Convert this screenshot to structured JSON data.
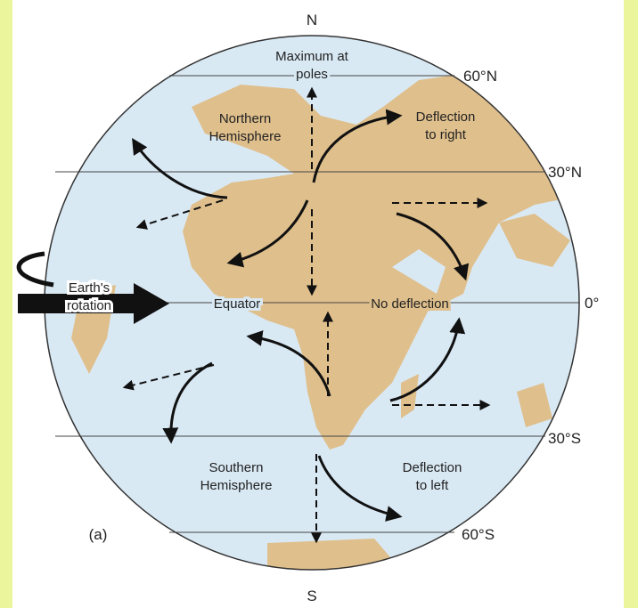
{
  "poles": {
    "north": "N",
    "south": "S"
  },
  "latitudes": {
    "lat60n": "60°N",
    "lat30n": "30°N",
    "equator": "0°",
    "lat30s": "30°S",
    "lat60s": "60°S"
  },
  "labels": {
    "maximum": [
      "Maximum at",
      "poles"
    ],
    "northern": [
      "Northern",
      "Hemisphere"
    ],
    "deflection_right": [
      "Deflection",
      "to right"
    ],
    "earth_rotation": [
      "Earth's",
      "rotation"
    ],
    "equator": "Equator",
    "no_deflection": "No deflection",
    "southern": [
      "Southern",
      "Hemisphere"
    ],
    "deflection_left": [
      "Deflection",
      "to left"
    ],
    "panel": "(a)"
  }
}
